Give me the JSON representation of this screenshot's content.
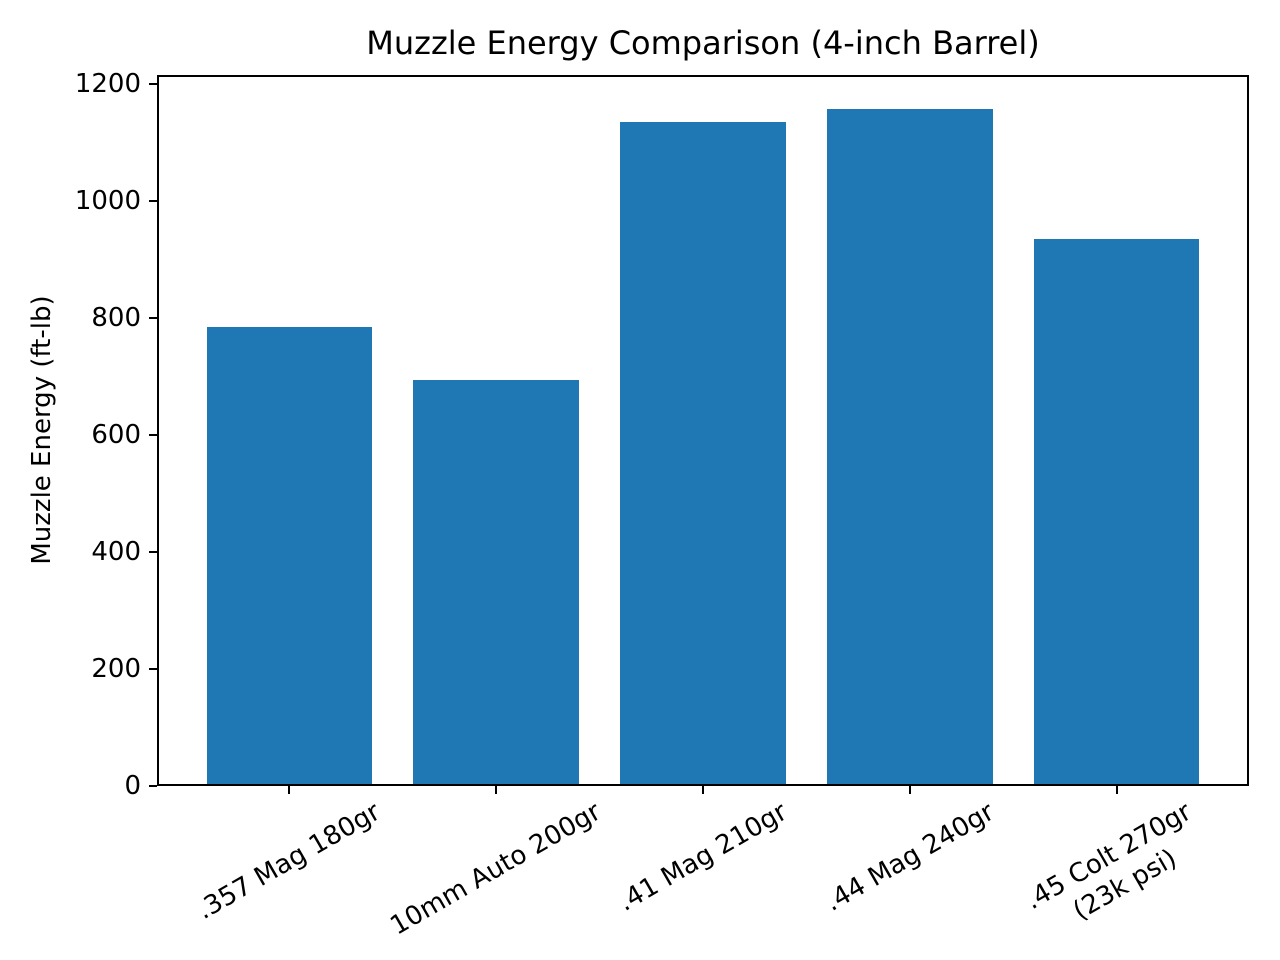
{
  "chart_data": {
    "type": "bar",
    "title": "Muzzle Energy Comparison (4-inch Barrel)",
    "xlabel": "",
    "ylabel": "Muzzle Energy (ft-lb)",
    "categories": [
      ".357 Mag 180gr",
      "10mm Auto 200gr",
      ".41 Mag 210gr",
      ".44 Mag 240gr",
      ".45 Colt 270gr\n(23k psi)"
    ],
    "values": [
      785,
      694,
      1134,
      1157,
      935
    ],
    "yticks": [
      0,
      200,
      400,
      600,
      800,
      1000,
      1200
    ],
    "ylim": [
      0,
      1215
    ],
    "bar_color": "#1f77b4",
    "spine_color": "#000000",
    "text_color": "#000000",
    "background_color": "#ffffff",
    "x_tick_rotation_deg": 30,
    "grid": false,
    "legend": false
  }
}
